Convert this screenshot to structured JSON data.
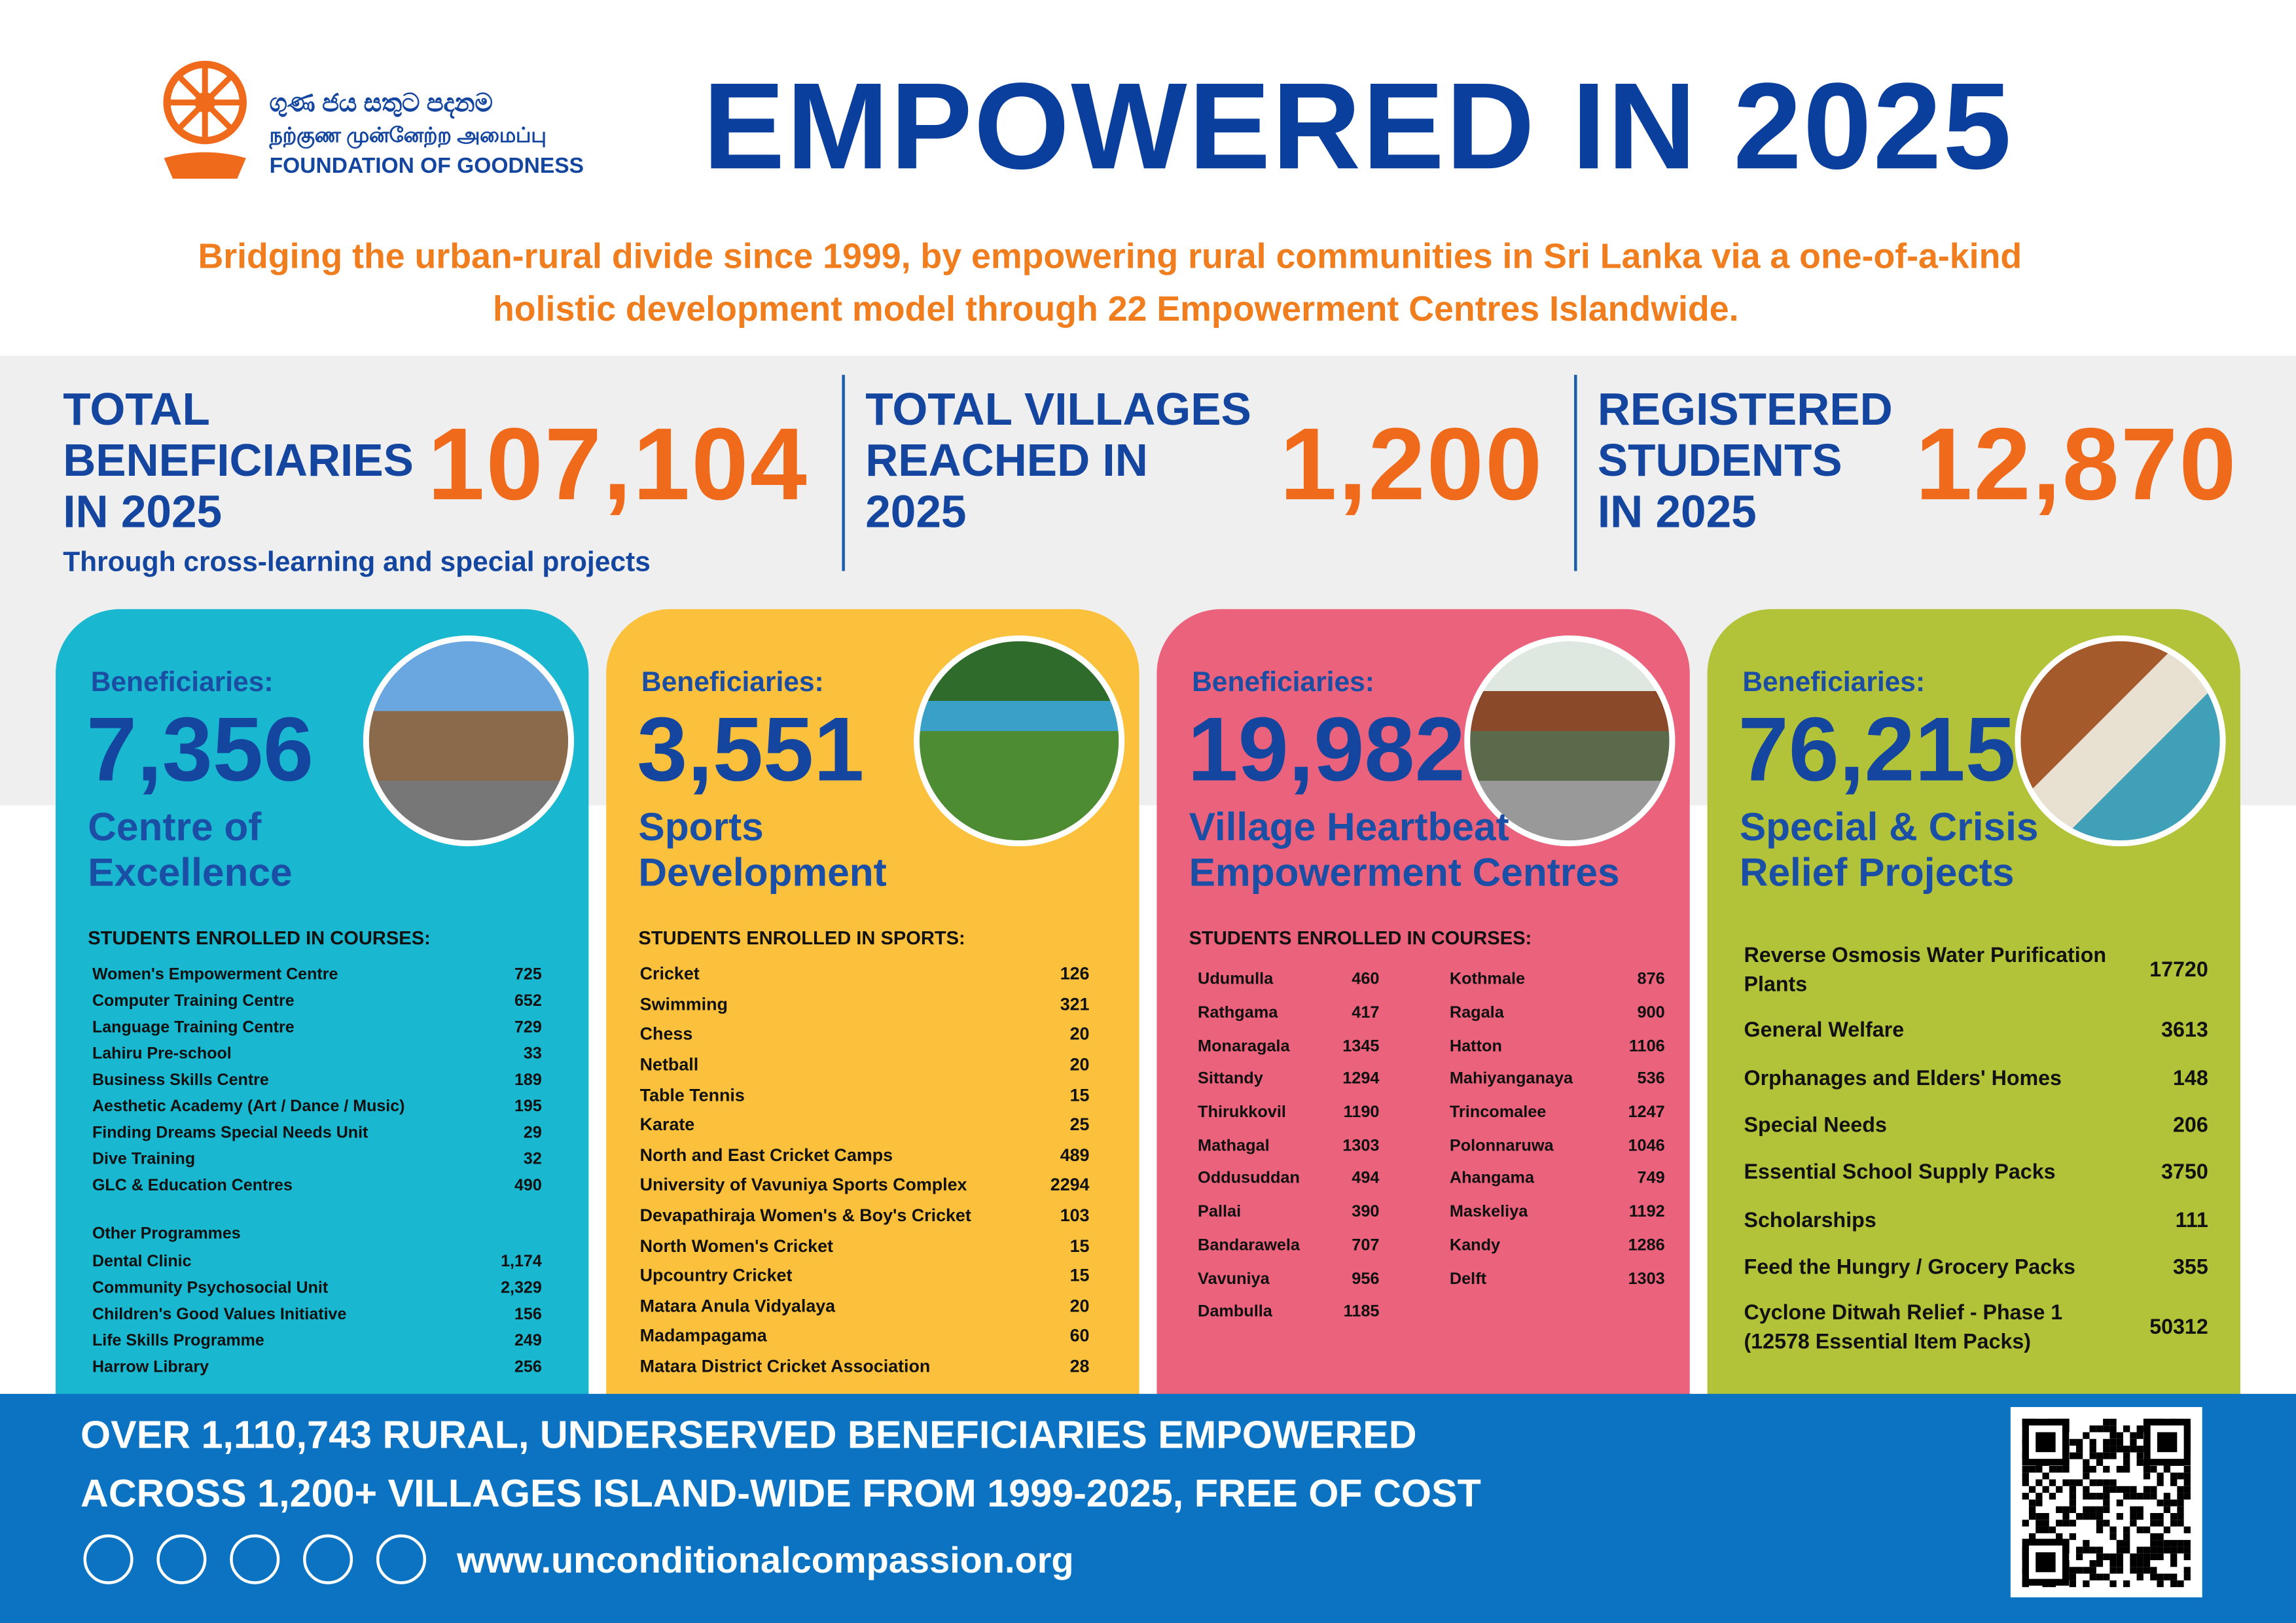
{
  "header": {
    "logo_sinhala": "ගුණ ජය සතුට පදනම",
    "logo_tamil": "நற்குண முன்னேற்ற அமைப்பு",
    "logo_english": "FOUNDATION OF GOODNESS",
    "title": "EMPOWERED IN 2025",
    "subtitle": [
      "Bridging the urban-rural divide since 1999, by empowering rural communities in Sri Lanka via a one-of-a-kind",
      "holistic development model through 22 Empowerment Centres Islandwide."
    ]
  },
  "stats": [
    {
      "label": [
        "TOTAL",
        "BENEFICIARIES",
        "IN 2025"
      ],
      "value": "107,104",
      "note": "Through cross-learning and special projects"
    },
    {
      "label": [
        "TOTAL VILLAGES",
        "REACHED IN",
        "2025"
      ],
      "value": "1,200"
    },
    {
      "label": [
        "REGISTERED",
        "STUDENTS",
        "IN 2025"
      ],
      "value": "12,870"
    }
  ],
  "cards": [
    {
      "beneficiaries_label": "Beneficiaries:",
      "value": "7,356",
      "name": [
        "Centre of",
        "Excellence"
      ],
      "list_heading": "STUDENTS ENROLLED IN COURSES:",
      "items": [
        [
          "Women's Empowerment Centre",
          "725"
        ],
        [
          "Computer Training Centre",
          "652"
        ],
        [
          "Language Training Centre",
          "729"
        ],
        [
          "Lahiru Pre-school",
          "33"
        ],
        [
          "Business Skills Centre",
          "189"
        ],
        [
          "Aesthetic Academy (Art / Dance / Music)",
          "195"
        ],
        [
          "Finding Dreams Special Needs Unit",
          "29"
        ],
        [
          "Dive Training",
          "32"
        ],
        [
          "GLC & Education Centres",
          "490"
        ]
      ],
      "other_heading": "Other Programmes",
      "other_items": [
        [
          "Dental Clinic",
          "1,174"
        ],
        [
          "Community Psychosocial Unit",
          "2,329"
        ],
        [
          "Children's Good Values Initiative",
          "156"
        ],
        [
          "Life Skills Programme",
          "249"
        ],
        [
          "Harrow Library",
          "256"
        ]
      ]
    },
    {
      "beneficiaries_label": "Beneficiaries:",
      "value": "3,551",
      "name": [
        "Sports",
        "Development"
      ],
      "list_heading": "STUDENTS ENROLLED IN SPORTS:",
      "items": [
        [
          "Cricket",
          "126"
        ],
        [
          "Swimming",
          "321"
        ],
        [
          "Chess",
          "20"
        ],
        [
          "Netball",
          "20"
        ],
        [
          "Table Tennis",
          "15"
        ],
        [
          "Karate",
          "25"
        ],
        [
          "North and East Cricket Camps",
          "489"
        ],
        [
          "University of Vavuniya Sports Complex",
          "2294"
        ],
        [
          "Devapathiraja Women's & Boy's Cricket",
          "103"
        ],
        [
          "North Women's Cricket",
          "15"
        ],
        [
          "Upcountry Cricket",
          "15"
        ],
        [
          "Matara Anula Vidyalaya",
          "20"
        ],
        [
          "Madampagama",
          "60"
        ],
        [
          "Matara District Cricket Association",
          "28"
        ]
      ]
    },
    {
      "beneficiaries_label": "Beneficiaries:",
      "value": "19,982",
      "name": [
        "Village Heartbeat",
        "Empowerment Centres"
      ],
      "list_heading": "STUDENTS ENROLLED IN COURSES:",
      "columns": [
        [
          [
            "Udumulla",
            "460"
          ],
          [
            "Rathgama",
            "417"
          ],
          [
            "Monaragala",
            "1345"
          ],
          [
            "Sittandy",
            "1294"
          ],
          [
            "Thirukkovil",
            "1190"
          ],
          [
            "Mathagal",
            "1303"
          ],
          [
            "Oddusuddan",
            "494"
          ],
          [
            "Pallai",
            "390"
          ],
          [
            "Bandarawela",
            "707"
          ],
          [
            "Vavuniya",
            "956"
          ],
          [
            "Dambulla",
            "1185"
          ]
        ],
        [
          [
            "Kothmale",
            "876"
          ],
          [
            "Ragala",
            "900"
          ],
          [
            "Hatton",
            "1106"
          ],
          [
            "Mahiyanganaya",
            "536"
          ],
          [
            "Trincomalee",
            "1247"
          ],
          [
            "Polonnaruwa",
            "1046"
          ],
          [
            "Ahangama",
            "749"
          ],
          [
            "Maskeliya",
            "1192"
          ],
          [
            "Kandy",
            "1286"
          ],
          [
            "Delft",
            "1303"
          ]
        ]
      ]
    },
    {
      "beneficiaries_label": "Beneficiaries:",
      "value": "76,215",
      "name": [
        "Special & Crisis",
        "Relief Projects"
      ],
      "items": [
        [
          "Reverse Osmosis Water Purification Plants",
          "17720"
        ],
        [
          "General Welfare",
          "3613"
        ],
        [
          "Orphanages and Elders' Homes",
          "148"
        ],
        [
          "Special Needs",
          "206"
        ],
        [
          "Essential School Supply Packs",
          "3750"
        ],
        [
          "Scholarships",
          "111"
        ],
        [
          "Feed the Hungry / Grocery Packs",
          "355"
        ],
        [
          "Cyclone Ditwah Relief - Phase 1 (12578 Essential Item Packs)",
          "50312"
        ]
      ]
    }
  ],
  "footer": {
    "lines": [
      "OVER 1,110,743 RURAL, UNDERSERVED BENEFICIARIES EMPOWERED",
      "ACROSS 1,200+ VILLAGES ISLAND-WIDE FROM 1999-2025, FREE OF COST"
    ],
    "website": "www.unconditionalcompassion.org"
  }
}
